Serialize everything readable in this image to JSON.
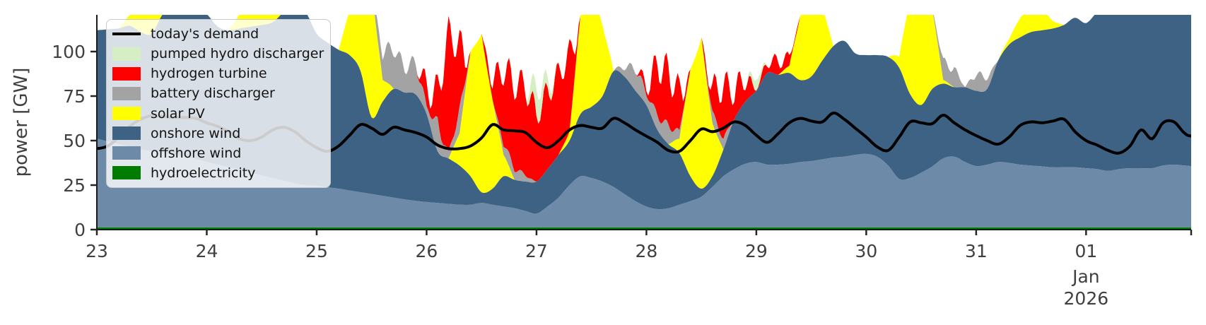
{
  "figure": {
    "ylabel": "power [GW]",
    "month_label": "Jan",
    "year_label": "2026"
  },
  "chart_data": {
    "type": "area",
    "stacked": true,
    "title": "",
    "ylabel": "power [GW]",
    "xlim": [
      23.0,
      32.956
    ],
    "ylim": [
      0,
      120.63
    ],
    "grid": false,
    "legend_position": "upper left",
    "yticks": [
      0,
      25,
      50,
      75,
      100
    ],
    "xticks": [
      {
        "v": 23,
        "label": "23"
      },
      {
        "v": 24,
        "label": "24"
      },
      {
        "v": 25,
        "label": "25"
      },
      {
        "v": 26,
        "label": "26"
      },
      {
        "v": 27,
        "label": "27"
      },
      {
        "v": 28,
        "label": "28"
      },
      {
        "v": 29,
        "label": "29"
      },
      {
        "v": 30,
        "label": "30"
      },
      {
        "v": 31,
        "label": "31"
      },
      {
        "v": 32,
        "label": "01"
      },
      {
        "v": 32.956,
        "label": ""
      }
    ],
    "x_sublabel": {
      "v": 32,
      "lines": [
        "Jan",
        "2026"
      ]
    },
    "x": [
      23.0,
      23.1,
      23.2,
      23.3,
      23.4,
      23.5,
      23.6,
      23.7,
      23.8,
      23.9,
      24.0,
      24.1,
      24.2,
      24.3,
      24.4,
      24.5,
      24.6,
      24.7,
      24.8,
      24.9,
      25.0,
      25.1,
      25.2,
      25.3,
      25.4,
      25.5,
      25.6,
      25.7,
      25.8,
      25.9,
      26.0,
      26.1,
      26.2,
      26.3,
      26.4,
      26.5,
      26.6,
      26.7,
      26.8,
      26.9,
      27.0,
      27.1,
      27.2,
      27.3,
      27.4,
      27.5,
      27.6,
      27.7,
      27.8,
      27.9,
      28.0,
      28.1,
      28.2,
      28.3,
      28.4,
      28.5,
      28.6,
      28.7,
      28.8,
      28.9,
      29.0,
      29.1,
      29.2,
      29.3,
      29.4,
      29.5,
      29.6,
      29.7,
      29.8,
      29.9,
      30.0,
      30.1,
      30.2,
      30.3,
      30.4,
      30.5,
      30.6,
      30.7,
      30.8,
      30.9,
      31.0,
      31.1,
      31.2,
      31.3,
      31.4,
      31.5,
      31.6,
      31.7,
      31.8,
      31.9,
      32.0,
      32.1,
      32.2,
      32.3,
      32.4,
      32.5,
      32.6,
      32.7,
      32.8,
      32.9,
      32.96
    ],
    "series": [
      {
        "name": "hydroelectricity",
        "color": "#007d00",
        "interp": "smooth",
        "values": [
          1.3,
          1.3,
          1.3,
          1.3,
          1.3,
          1.3,
          1.3,
          1.3,
          1.3,
          1.3,
          1.3,
          1.3,
          1.3,
          1.3,
          1.3,
          1.3,
          1.3,
          1.3,
          1.3,
          1.3,
          1.3,
          1.3,
          1.3,
          1.3,
          1.3,
          1.3,
          1.3,
          1.3,
          1.3,
          1.3,
          1.3,
          1.3,
          1.3,
          1.3,
          1.3,
          1.3,
          1.3,
          1.3,
          1.3,
          1.3,
          1.3,
          1.3,
          1.3,
          1.3,
          1.3,
          1.3,
          1.3,
          1.3,
          1.3,
          1.3,
          1.3,
          1.3,
          1.3,
          1.3,
          1.3,
          1.3,
          1.3,
          1.3,
          1.3,
          1.3,
          1.3,
          1.3,
          1.3,
          1.3,
          1.3,
          1.3,
          1.3,
          1.3,
          1.3,
          1.3,
          1.3,
          1.3,
          1.3,
          1.3,
          1.3,
          1.3,
          1.3,
          1.3,
          1.3,
          1.3,
          1.3,
          1.3,
          1.3,
          1.3,
          1.3,
          1.3,
          1.3,
          1.3,
          1.3,
          1.3,
          1.3,
          1.3,
          1.3,
          1.3,
          1.3,
          1.3,
          1.3,
          1.3,
          1.3,
          1.3,
          1.3
        ]
      },
      {
        "name": "offshore wind",
        "color": "#6d8ba8",
        "interp": "smooth",
        "values": [
          49.7,
          48.2,
          46.7,
          45.2,
          43.7,
          42.7,
          41.7,
          40.7,
          39.7,
          38.2,
          36.7,
          35.2,
          33.7,
          32.2,
          30.7,
          29.2,
          27.7,
          26.2,
          24.7,
          23.7,
          23.2,
          22.5,
          21.7,
          20.7,
          19.7,
          18.7,
          17.7,
          16.7,
          15.7,
          14.9,
          14.2,
          13.7,
          13.2,
          12.7,
          12.7,
          13.7,
          12.7,
          11.7,
          10.7,
          9.2,
          7.7,
          11.7,
          16.7,
          23.7,
          28.7,
          27.7,
          25.7,
          22.7,
          18.7,
          14.7,
          11.7,
          10.2,
          10.7,
          12.7,
          14.7,
          17.2,
          22.7,
          28.7,
          32.7,
          35.7,
          36.7,
          35.2,
          35.2,
          35.7,
          36.7,
          37.2,
          38.2,
          39.2,
          39.7,
          40.7,
          41.2,
          39.7,
          34.7,
          27.2,
          27.7,
          30.7,
          34.2,
          38.7,
          39.7,
          36.7,
          34.4,
          35.2,
          36.7,
          36.2,
          35.2,
          34.7,
          34.2,
          33.7,
          33.7,
          33.7,
          33.2,
          32.7,
          31.7,
          32.7,
          33.2,
          33.2,
          33.2,
          34.7,
          35.2,
          34.7,
          34.4
        ]
      },
      {
        "name": "onshore wind",
        "color": "#3e6284",
        "interp": "smooth",
        "values": [
          61,
          63,
          65,
          68,
          66,
          66,
          78,
          81,
          83,
          84.5,
          83,
          77.5,
          77,
          79.5,
          82,
          84.5,
          87.5,
          94.5,
          98,
          97,
          85.5,
          81.2,
          78,
          76,
          68,
          43,
          53,
          61,
          60,
          59.8,
          49.5,
          29,
          25.5,
          22,
          16,
          6,
          9,
          17,
          16,
          16.5,
          18,
          21,
          24,
          25,
          35,
          40,
          48,
          65,
          66,
          62,
          57,
          44.5,
          36,
          29,
          14,
          4.5,
          6,
          15,
          28,
          35,
          40,
          51.5,
          50.5,
          51,
          46,
          47.5,
          55.5,
          62.5,
          65,
          57,
          55.5,
          57,
          61,
          62.5,
          47,
          38,
          43.5,
          42,
          39,
          42,
          42.3,
          42.5,
          57,
          66.5,
          71.5,
          75,
          76.5,
          78,
          80,
          84,
          81.5,
          88,
          92,
          92,
          92.5,
          92.5,
          91.5,
          91,
          89.5,
          89,
          89.3
        ]
      },
      {
        "name": "solar PV",
        "color": "#ffff00",
        "interp": "linear",
        "values": [
          0,
          0,
          0,
          6,
          22,
          30,
          22,
          6,
          0,
          0,
          0,
          0,
          0,
          8,
          25,
          30,
          20,
          5,
          0,
          0,
          0,
          0,
          0,
          25,
          75,
          75,
          12,
          0,
          0,
          0,
          0,
          0,
          0,
          18,
          70,
          89,
          50,
          12,
          0,
          0,
          0,
          0,
          0,
          5,
          55,
          70,
          40,
          0,
          0,
          0,
          0,
          0,
          0,
          8,
          60,
          85,
          30,
          0,
          0,
          0,
          0,
          0,
          0,
          4,
          36,
          55,
          30,
          0,
          0,
          0,
          0,
          0,
          0,
          6,
          55,
          65,
          45,
          2,
          0,
          0,
          0,
          0,
          0,
          3,
          11,
          14,
          12,
          4,
          0,
          0,
          0,
          0,
          0,
          0,
          0,
          0,
          0,
          0,
          0,
          0,
          0
        ]
      },
      {
        "name": "battery discharger",
        "color": "#a3a3a3",
        "interp": "spiky",
        "spike_amp": 9,
        "values": [
          0,
          0,
          0,
          0,
          0,
          0,
          0,
          0,
          0,
          0,
          0,
          0,
          0,
          0,
          0,
          0,
          0,
          0,
          0,
          0,
          0,
          0,
          0,
          0,
          0,
          0,
          20,
          27,
          18,
          22,
          5,
          20,
          4,
          16,
          0,
          0,
          0,
          8,
          8,
          5,
          0,
          0,
          0,
          0,
          0,
          0,
          0,
          0,
          6,
          17,
          8,
          11,
          13,
          5,
          0,
          0,
          8,
          8,
          0,
          0,
          0,
          0,
          0,
          0,
          0,
          0,
          0,
          0,
          0,
          0,
          0,
          0,
          0,
          0,
          0,
          0,
          0,
          13,
          13,
          0,
          13,
          9,
          0,
          0,
          0,
          0,
          0,
          0,
          0,
          0,
          0,
          0,
          0,
          0,
          0,
          0,
          0,
          0,
          0,
          0,
          0
        ]
      },
      {
        "name": "hydrogen turbine",
        "color": "#ff0000",
        "interp": "spiky",
        "spike_amp": 16,
        "values": [
          0,
          0,
          0,
          0,
          0,
          0,
          0,
          0,
          0,
          0,
          0,
          0,
          0,
          0,
          0,
          0,
          0,
          0,
          0,
          0,
          0,
          0,
          0,
          0,
          0,
          0,
          0,
          0,
          0,
          0,
          18,
          25,
          76,
          44,
          0,
          0,
          18,
          50,
          56,
          58,
          46,
          51,
          53,
          52,
          0,
          0,
          0,
          0,
          0,
          0,
          8,
          37,
          38,
          30,
          0,
          0,
          20,
          38,
          23,
          22,
          0,
          10,
          12,
          8,
          0,
          0,
          0,
          0,
          0,
          0,
          0,
          0,
          0,
          0,
          0,
          0,
          0,
          0,
          0,
          0,
          0,
          0,
          0,
          0,
          0,
          0,
          0,
          0,
          0,
          0,
          0,
          0,
          0,
          0,
          0,
          0,
          0,
          0,
          0,
          0,
          0
        ]
      },
      {
        "name": "pumped hydro discharger",
        "color": "#d5eec3",
        "interp": "linear",
        "values": [
          0,
          0,
          0,
          0,
          0,
          0,
          0,
          0,
          0,
          0,
          0,
          0,
          0,
          0,
          0,
          0,
          0,
          0,
          0,
          0,
          0,
          0,
          0,
          0,
          0,
          0,
          0,
          0,
          0,
          0,
          0,
          0,
          0,
          0,
          0,
          0,
          0,
          0,
          0,
          0,
          15,
          6,
          0,
          0,
          0,
          0,
          0,
          0,
          0,
          0,
          0,
          0,
          0,
          0,
          0,
          0,
          0,
          0,
          0,
          0,
          6,
          0,
          0,
          0,
          0,
          0,
          0,
          0,
          0,
          0,
          0,
          0,
          0,
          0,
          0,
          0,
          0,
          0,
          0,
          0,
          0,
          0,
          0,
          0,
          0,
          0,
          0,
          0,
          0,
          0,
          0,
          0,
          0,
          0,
          0,
          0,
          0,
          0,
          0,
          0,
          0
        ]
      }
    ],
    "demand": {
      "name": "today's demand",
      "color": "#000000",
      "line_width": 4,
      "values": [
        45.5,
        47,
        52,
        58,
        62,
        64,
        63.5,
        63,
        63,
        62.5,
        60,
        58,
        55,
        51,
        50,
        52,
        56,
        57.5,
        55,
        50,
        46,
        44,
        47,
        53,
        59,
        57,
        53.5,
        57.5,
        56,
        54.5,
        52,
        47.5,
        45.5,
        45.5,
        47,
        51.5,
        59,
        56,
        55.5,
        54.5,
        49,
        46,
        50,
        56,
        58.5,
        57.5,
        57,
        62.5,
        60,
        56,
        52.5,
        49,
        44.5,
        44,
        50,
        56.5,
        55,
        57,
        60.5,
        58.5,
        53,
        49,
        54,
        60,
        62.5,
        61,
        60.5,
        65.5,
        62,
        57,
        52,
        46.5,
        44.5,
        52,
        60.5,
        60,
        59.5,
        64.3,
        60,
        56,
        52.8,
        50,
        48,
        52,
        58.5,
        60.5,
        60,
        61,
        62,
        55,
        50,
        47.5,
        44.5,
        43,
        47,
        56,
        51,
        60,
        60.5,
        54,
        52.5
      ]
    }
  }
}
